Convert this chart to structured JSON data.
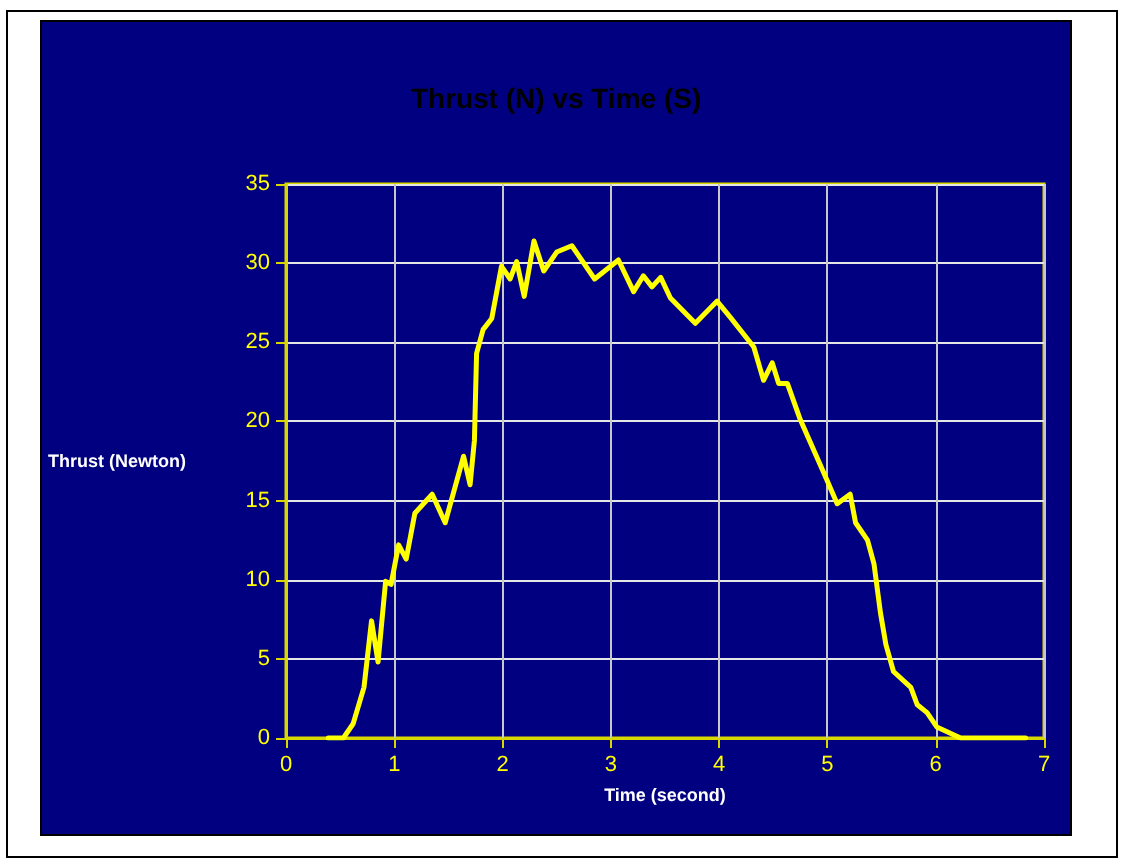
{
  "chart_data": {
    "type": "line",
    "title": "Thrust (N) vs Time (S)",
    "xlabel": "Time (second)",
    "ylabel": "Thrust (Newton)",
    "x": [
      0.39,
      0.53,
      0.62,
      0.72,
      0.79,
      0.85,
      0.92,
      0.97,
      1.04,
      1.11,
      1.19,
      1.35,
      1.47,
      1.64,
      1.7,
      1.74,
      1.76,
      1.82,
      1.9,
      1.99,
      2.07,
      2.13,
      2.2,
      2.29,
      2.38,
      2.5,
      2.64,
      2.85,
      3.07,
      3.21,
      3.3,
      3.38,
      3.46,
      3.55,
      3.78,
      3.98,
      4.1,
      4.32,
      4.41,
      4.49,
      4.55,
      4.63,
      4.75,
      4.97,
      5.09,
      5.21,
      5.26,
      5.37,
      5.43,
      5.49,
      5.54,
      5.61,
      5.77,
      5.83,
      5.92,
      6.01,
      6.23,
      6.83
    ],
    "series": [
      {
        "color": "#ffff00",
        "values": [
          0,
          0,
          0.9,
          3.2,
          7.4,
          4.8,
          9.9,
          9.7,
          12.2,
          11.3,
          14.2,
          15.4,
          13.6,
          17.8,
          16,
          18.8,
          24.3,
          25.8,
          26.5,
          29.8,
          29,
          30.1,
          27.9,
          31.4,
          29.5,
          30.7,
          31.1,
          29,
          30.2,
          28.2,
          29.2,
          28.5,
          29.1,
          27.8,
          26.2,
          27.6,
          26.6,
          24.7,
          22.6,
          23.7,
          22.4,
          22.4,
          20.1,
          16.7,
          14.8,
          15.4,
          13.6,
          12.5,
          11,
          7.9,
          5.9,
          4.2,
          3.2,
          2.1,
          1.6,
          0.7,
          0,
          0
        ]
      }
    ],
    "xlim": [
      0,
      7
    ],
    "xticks": [
      0,
      1,
      2,
      3,
      4,
      5,
      6,
      7
    ],
    "ylim": [
      0,
      35
    ],
    "yticks": [
      0,
      5,
      10,
      15,
      20,
      25,
      30,
      35
    ],
    "grid": true,
    "marker": "none",
    "line_style": "solid"
  }
}
